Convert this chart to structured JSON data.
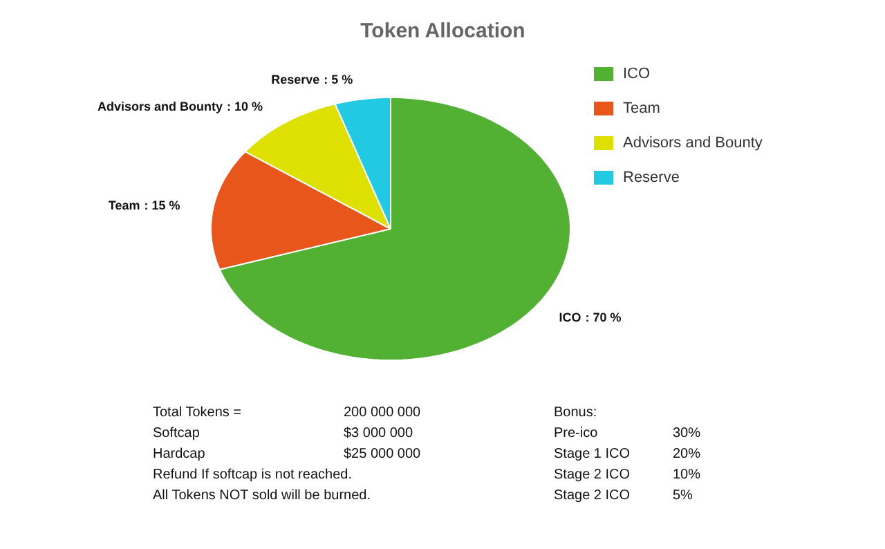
{
  "chart_data": {
    "type": "pie",
    "title": "Token Allocation",
    "categories": [
      "ICO",
      "Team",
      "Advisors and Bounty",
      "Reserve"
    ],
    "values": [
      70,
      15,
      10,
      5
    ],
    "colors": [
      "#52b033",
      "#e8561c",
      "#dde000",
      "#22c9e2"
    ],
    "value_labels": [
      ": 70 %",
      ": 15 %",
      ": 10 %",
      ": 5 %"
    ],
    "legend": "right",
    "annotations": [
      "Total Tokens =",
      "200 000 000",
      "Softcap",
      "$3 000 000",
      "Hardcap",
      "$25 000 000",
      "Refund If softcap is not reached.",
      "All Tokens NOT sold will be burned.",
      "Bonus:",
      "Pre-ico",
      "30%",
      "Stage 1 ICO",
      "20%",
      "Stage 2 ICO",
      "10%",
      "Stage 2 ICO",
      "5%"
    ]
  }
}
